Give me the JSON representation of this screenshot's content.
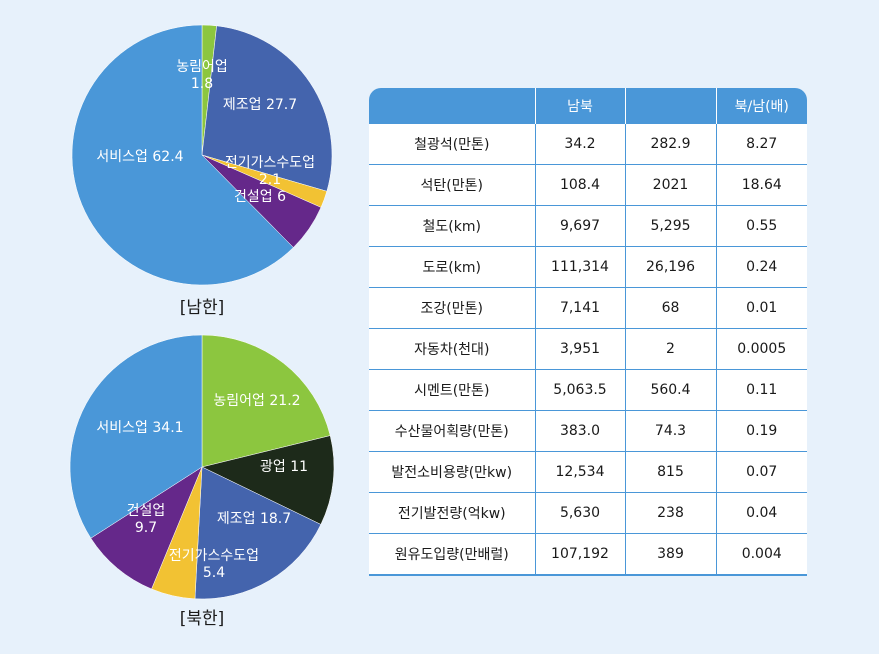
{
  "chart_data": [
    {
      "type": "pie",
      "title": "[남한]",
      "slices": [
        {
          "label": "농림어업",
          "value": 1.8,
          "color": "#8cc63f"
        },
        {
          "label": "제조업",
          "value": 27.7,
          "color": "#4464ad"
        },
        {
          "label": "전기가스수도업",
          "value": 2.1,
          "color": "#f2c233"
        },
        {
          "label": "건설업",
          "value": 6,
          "color": "#65288a"
        },
        {
          "label": "서비스업",
          "value": 62.4,
          "color": "#4a97d8"
        }
      ]
    },
    {
      "type": "pie",
      "title": "[북한]",
      "slices": [
        {
          "label": "농림어업",
          "value": 21.2,
          "color": "#8cc63f"
        },
        {
          "label": "광업",
          "value": 11,
          "color": "#1d2a1a"
        },
        {
          "label": "제조업",
          "value": 18.7,
          "color": "#4464ad"
        },
        {
          "label": "전기가스수도업",
          "value": 5.4,
          "color": "#f2c233"
        },
        {
          "label": "건설업",
          "value": 9.7,
          "color": "#65288a"
        },
        {
          "label": "서비스업",
          "value": 34.1,
          "color": "#4a97d8"
        }
      ]
    },
    {
      "type": "table",
      "headers": [
        "",
        "남북",
        "",
        "북/남(배)"
      ],
      "rows": [
        [
          "철광석(만톤)",
          "34.2",
          "282.9",
          "8.27"
        ],
        [
          "석탄(만톤)",
          "108.4",
          "2021",
          "18.64"
        ],
        [
          "철도(km)",
          "9,697",
          "5,295",
          "0.55"
        ],
        [
          "도로(km)",
          "111,314",
          "26,196",
          "0.24"
        ],
        [
          "조강(만톤)",
          "7,141",
          "68",
          "0.01"
        ],
        [
          "자동차(천대)",
          "3,951",
          "2",
          "0.0005"
        ],
        [
          "시멘트(만톤)",
          "5,063.5",
          "560.4",
          "0.11"
        ],
        [
          "수산물어획량(만톤)",
          "383.0",
          "74.3",
          "0.19"
        ],
        [
          "발전소비용량(만kw)",
          "12,534",
          "815",
          "0.07"
        ],
        [
          "전기발전량(억kw)",
          "5,630",
          "238",
          "0.04"
        ],
        [
          "원유도입량(만배럴)",
          "107,192",
          "389",
          "0.004"
        ]
      ]
    }
  ]
}
